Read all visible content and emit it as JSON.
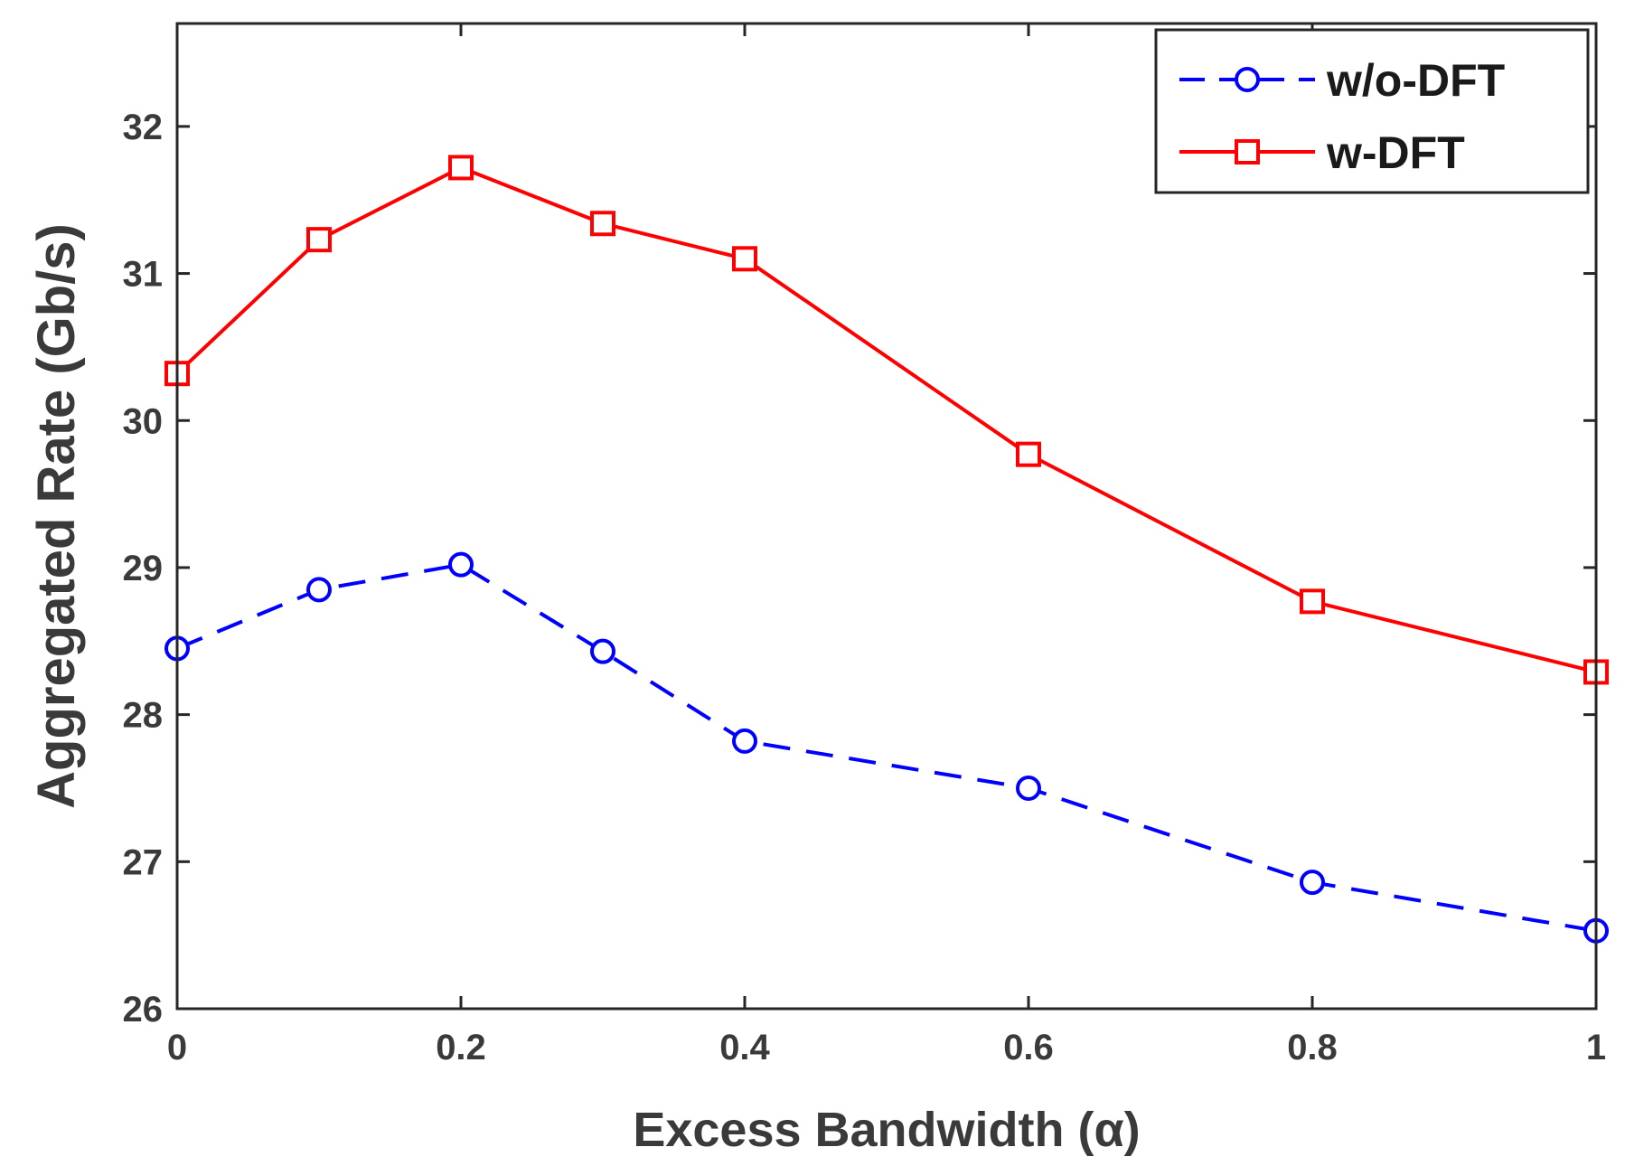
{
  "chart_data": {
    "type": "line",
    "title": "",
    "xlabel": "Excess Bandwidth (α)",
    "ylabel": "Aggregated Rate (Gb/s)",
    "xlim": [
      0,
      1
    ],
    "ylim": [
      26,
      32.7
    ],
    "xticks": [
      0,
      0.2,
      0.4,
      0.6,
      0.8,
      1
    ],
    "xtick_labels": [
      "0",
      "0.2",
      "0.4",
      "0.6",
      "0.8",
      "1"
    ],
    "yticks": [
      26,
      27,
      28,
      29,
      30,
      31,
      32
    ],
    "ytick_labels": [
      "26",
      "27",
      "28",
      "29",
      "30",
      "31",
      "32"
    ],
    "grid": false,
    "legend_position": "top-right",
    "x": [
      0,
      0.1,
      0.2,
      0.3,
      0.4,
      0.6,
      0.8,
      1
    ],
    "series": [
      {
        "name": "w/o-DFT",
        "values": [
          28.45,
          28.85,
          29.02,
          28.43,
          27.82,
          27.5,
          26.86,
          26.53
        ],
        "color": "#0000ff",
        "line_style": "dashed",
        "marker": "circle"
      },
      {
        "name": "w-DFT",
        "values": [
          30.32,
          31.23,
          31.72,
          31.34,
          31.1,
          29.77,
          28.77,
          28.29
        ],
        "color": "#ff0000",
        "line_style": "solid",
        "marker": "square"
      }
    ]
  }
}
